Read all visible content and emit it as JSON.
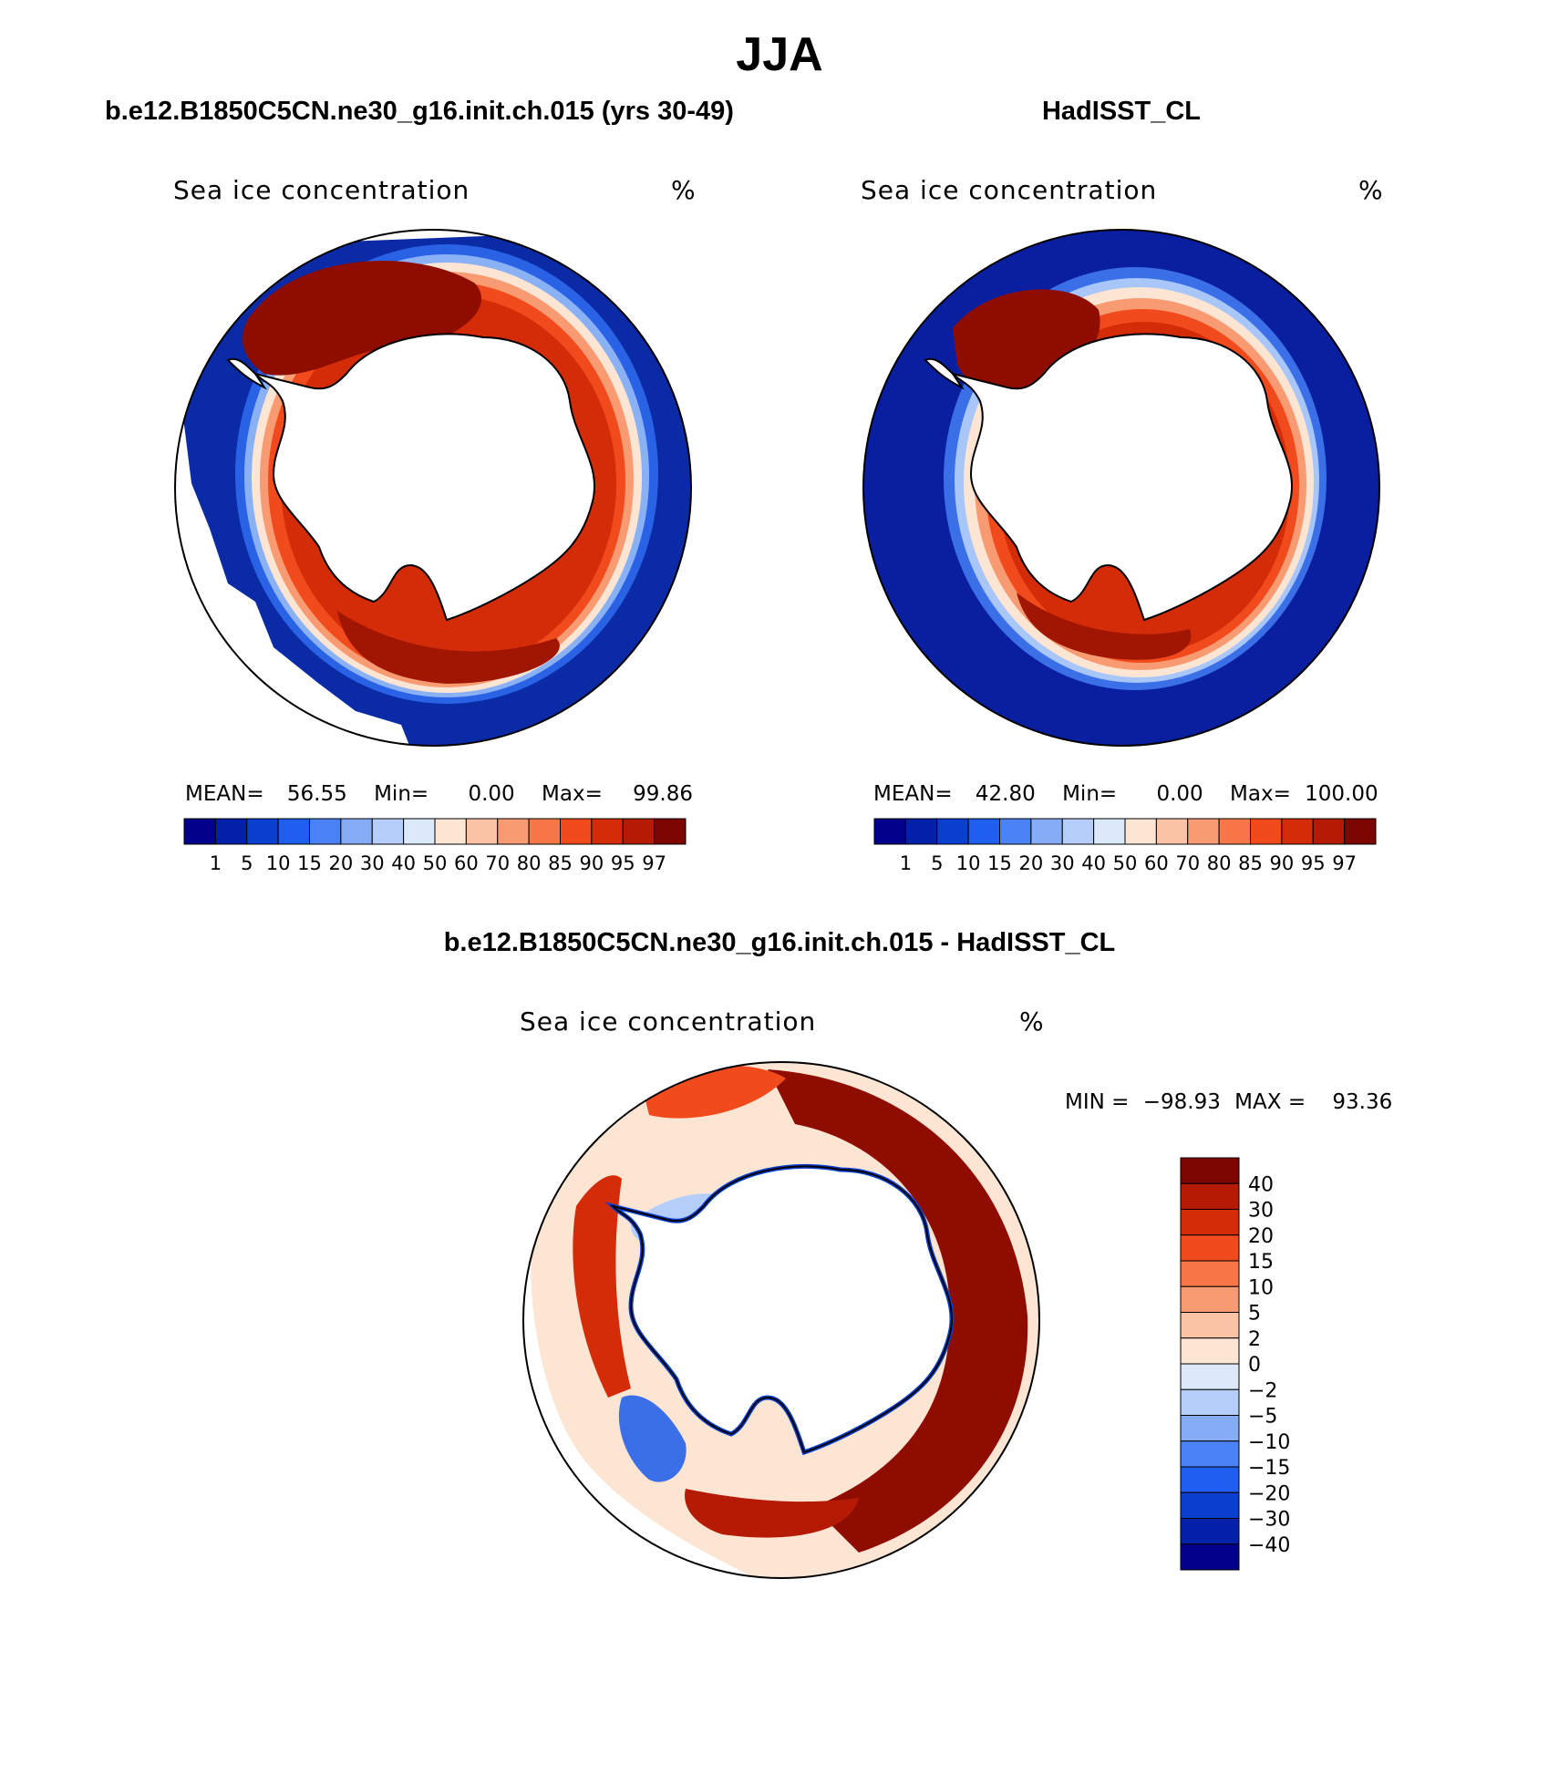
{
  "figure": {
    "title": "JJA"
  },
  "panels": [
    {
      "id": "model",
      "title": "b.e12.B1850C5CN.ne30_g16.init.ch.015 (yrs 30-49)",
      "variable": "Sea ice concentration",
      "unit": "%",
      "stats": {
        "mean_label": "MEAN=",
        "mean": "56.55",
        "min_label": "Min=",
        "min": "0.00",
        "max_label": "Max=",
        "max": "99.86"
      }
    },
    {
      "id": "obs",
      "title": "HadISST_CL",
      "variable": "Sea ice concentration",
      "unit": "%",
      "stats": {
        "mean_label": "MEAN=",
        "mean": "42.80",
        "min_label": "Min=",
        "min": "0.00",
        "max_label": "Max=",
        "max": "100.00"
      }
    },
    {
      "id": "diff",
      "title": "b.e12.B1850C5CN.ne30_g16.init.ch.015 - HadISST_CL",
      "variable": "Sea ice concentration",
      "unit": "%",
      "stats": {
        "min_label": "MIN =",
        "min": "−98.93",
        "max_label": "MAX =",
        "max": "93.36"
      }
    }
  ],
  "colorbar_concentration": {
    "labels": [
      "1",
      "5",
      "10",
      "15",
      "20",
      "30",
      "40",
      "50",
      "60",
      "70",
      "80",
      "85",
      "90",
      "95",
      "97"
    ],
    "colors": [
      "#00008a",
      "#0220a8",
      "#0a3fd0",
      "#1f5ef0",
      "#4a82f5",
      "#86acf6",
      "#b4cdf9",
      "#dbe9fb",
      "#fde5d4",
      "#fbc3a5",
      "#f99b72",
      "#f87648",
      "#f14a1c",
      "#d42c08",
      "#b51a05",
      "#7d0600"
    ]
  },
  "colorbar_difference": {
    "labels": [
      "40",
      "30",
      "20",
      "15",
      "10",
      "5",
      "2",
      "0",
      "−2",
      "−5",
      "−10",
      "−15",
      "−20",
      "−30",
      "−40"
    ],
    "colors": [
      "#7d0600",
      "#b51a05",
      "#d42c08",
      "#f14a1c",
      "#f87648",
      "#f99b72",
      "#fbc3a5",
      "#fde5d4",
      "#dbe9fb",
      "#b4cdf9",
      "#86acf6",
      "#4a82f5",
      "#1f5ef0",
      "#0a3fd0",
      "#0220a8",
      "#00008a"
    ]
  }
}
